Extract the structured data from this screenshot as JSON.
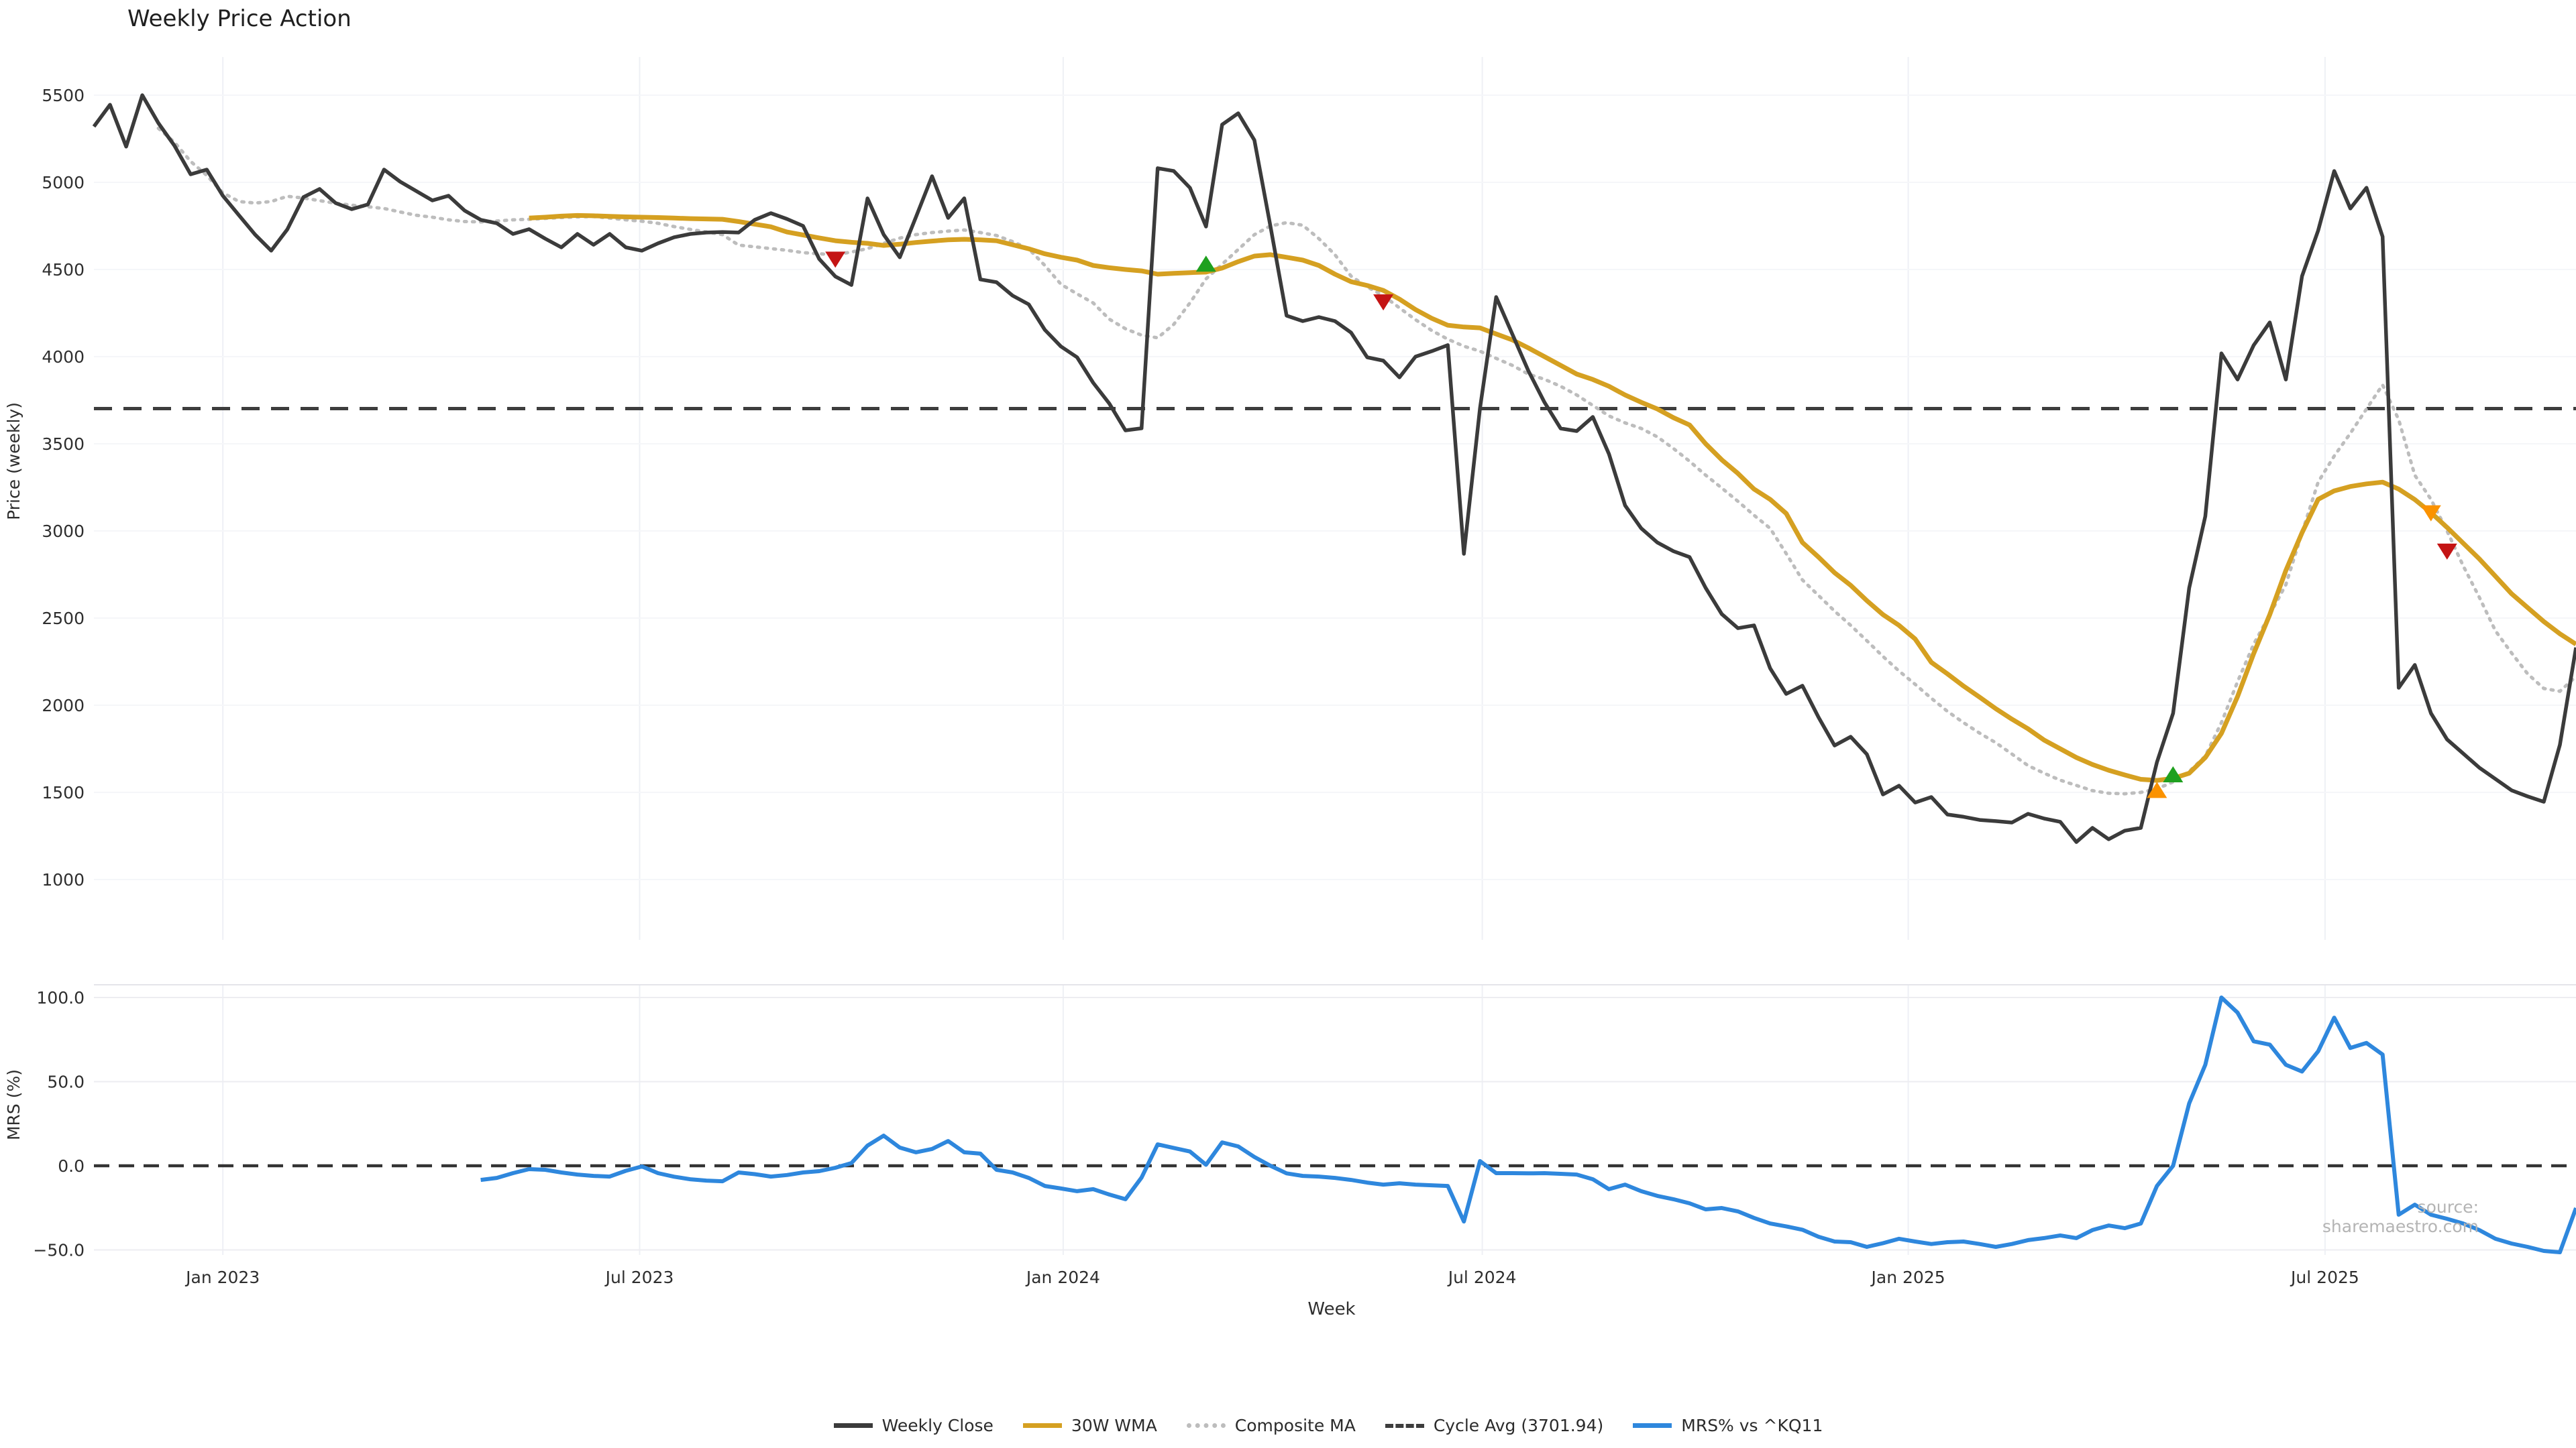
{
  "title": "Weekly Price Action",
  "source_note": "source: sharemaestro.com",
  "legend": {
    "items": [
      {
        "label": "Weekly Close",
        "swatch": "solid-dark"
      },
      {
        "label": "30W WMA",
        "swatch": "solid-gold"
      },
      {
        "label": "Composite MA",
        "swatch": "dotted-gray"
      },
      {
        "label": "Cycle Avg (3701.94)",
        "swatch": "dashed-dark"
      },
      {
        "label": "MRS% vs ^KQ11",
        "swatch": "solid-blue"
      }
    ]
  },
  "chart_data": [
    {
      "type": "line",
      "panel": "price",
      "title": "Weekly Price Action",
      "ylabel": "Price (weekly)",
      "ylim": [
        655,
        5720
      ],
      "grid": "faint",
      "yticks": {
        "values": [
          5500,
          5000,
          4500,
          4000,
          3500,
          3000,
          2500,
          2000,
          1500,
          1000
        ],
        "labels": [
          "5500",
          "5000",
          "4500",
          "4000",
          "3500",
          "3000",
          "2500",
          "2000",
          "1500",
          "1000"
        ]
      },
      "xticks": {
        "weeks": [
          8,
          33.86,
          60.14,
          86.14,
          112.57,
          138.43
        ],
        "labels": [
          "Jan 2023",
          "Jul 2023",
          "Jan 2024",
          "Jul 2024",
          "Jan 2025",
          "Jul 2025"
        ]
      },
      "x_start": "week 0 = first week shown (approx Nov 2022)",
      "n_weeks": 155,
      "cycle_avg": 3701.94,
      "series": [
        {
          "name": "Weekly Close",
          "color": "#3b3b3b",
          "style": "solid",
          "start_week": 0,
          "values": [
            5320,
            5445,
            5205,
            5500,
            5340,
            5210,
            5046,
            5073,
            4923,
            4811,
            4700,
            4608,
            4730,
            4915,
            4962,
            4881,
            4846,
            4873,
            5073,
            5004,
            4950,
            4896,
            4923,
            4838,
            4785,
            4765,
            4704,
            4731,
            4677,
            4627,
            4704,
            4642,
            4704,
            4627,
            4608,
            4650,
            4685,
            4704,
            4712,
            4715,
            4712,
            4785,
            4823,
            4790,
            4750,
            4560,
            4460,
            4411,
            4908,
            4700,
            4570,
            4800,
            5035,
            4796,
            4908,
            4443,
            4427,
            4350,
            4300,
            4154,
            4058,
            3996,
            3850,
            3731,
            3577,
            3589,
            5081,
            5065,
            4969,
            4746,
            5331,
            5396,
            5242,
            4746,
            4235,
            4204,
            4227,
            4204,
            4138,
            3996,
            3977,
            3881,
            4000,
            4031,
            4066,
            2869,
            3704,
            4342,
            4130,
            3919,
            3738,
            3588,
            3573,
            3654,
            3442,
            3146,
            3015,
            2934,
            2884,
            2850,
            2673,
            2523,
            2442,
            2458,
            2212,
            2065,
            2112,
            1931,
            1769,
            1819,
            1719,
            1488,
            1538,
            1442,
            1473,
            1373,
            1360,
            1342,
            1335,
            1327,
            1377,
            1350,
            1331,
            1215,
            1296,
            1231,
            1280,
            1296,
            1673,
            1954,
            2673,
            3084,
            4019,
            3869,
            4065,
            4196,
            3869,
            4462,
            4723,
            5065,
            4850,
            4969,
            4688,
            2100,
            2231,
            1954,
            1804,
            1723,
            1642,
            1577,
            1512,
            1477,
            1446,
            1773,
            2331
          ]
        },
        {
          "name": "30W WMA",
          "color": "#d5a021",
          "style": "solid",
          "start_week": 27,
          "values": [
            4795,
            4800,
            4806,
            4810,
            4808,
            4805,
            4802,
            4800,
            4798,
            4795,
            4792,
            4790,
            4788,
            4775,
            4760,
            4745,
            4715,
            4698,
            4681,
            4665,
            4656,
            4650,
            4638,
            4645,
            4655,
            4663,
            4670,
            4673,
            4670,
            4665,
            4642,
            4619,
            4590,
            4570,
            4554,
            4523,
            4510,
            4500,
            4492,
            4473,
            4478,
            4482,
            4485,
            4508,
            4545,
            4577,
            4585,
            4570,
            4554,
            4523,
            4473,
            4430,
            4408,
            4380,
            4330,
            4270,
            4220,
            4180,
            4170,
            4165,
            4130,
            4096,
            4050,
            4000,
            3950,
            3900,
            3869,
            3830,
            3780,
            3738,
            3700,
            3650,
            3608,
            3500,
            3408,
            3330,
            3240,
            3181,
            3100,
            2934,
            2850,
            2760,
            2688,
            2600,
            2520,
            2458,
            2380,
            2246,
            2180,
            2110,
            2046,
            1980,
            1920,
            1865,
            1800,
            1750,
            1700,
            1660,
            1627,
            1600,
            1575,
            1569,
            1580,
            1610,
            1700,
            1838,
            2050,
            2296,
            2520,
            2773,
            2990,
            3181,
            3230,
            3255,
            3270,
            3280,
            3240,
            3180,
            3105,
            3020,
            2930,
            2840,
            2740,
            2640,
            2560,
            2480,
            2410,
            2350
          ]
        },
        {
          "name": "Composite MA",
          "color": "#bdbdbd",
          "style": "dotted",
          "start_week": 4,
          "values": [
            5310,
            5230,
            5120,
            5040,
            4940,
            4890,
            4881,
            4890,
            4920,
            4910,
            4895,
            4880,
            4869,
            4860,
            4850,
            4830,
            4811,
            4800,
            4785,
            4775,
            4773,
            4778,
            4785,
            4788,
            4793,
            4798,
            4802,
            4804,
            4795,
            4785,
            4777,
            4765,
            4746,
            4730,
            4715,
            4700,
            4640,
            4630,
            4620,
            4610,
            4597,
            4590,
            4585,
            4600,
            4620,
            4650,
            4680,
            4700,
            4712,
            4720,
            4727,
            4712,
            4695,
            4660,
            4619,
            4523,
            4415,
            4360,
            4308,
            4215,
            4160,
            4123,
            4108,
            4185,
            4308,
            4446,
            4530,
            4615,
            4700,
            4750,
            4769,
            4754,
            4677,
            4585,
            4462,
            4400,
            4350,
            4280,
            4212,
            4150,
            4100,
            4060,
            4031,
            3990,
            3950,
            3900,
            3870,
            3830,
            3780,
            3720,
            3660,
            3620,
            3588,
            3540,
            3473,
            3400,
            3320,
            3246,
            3170,
            3090,
            3015,
            2870,
            2719,
            2630,
            2540,
            2458,
            2370,
            2280,
            2196,
            2120,
            2040,
            1965,
            1900,
            1840,
            1785,
            1720,
            1654,
            1610,
            1570,
            1540,
            1510,
            1495,
            1492,
            1500,
            1520,
            1560,
            1620,
            1708,
            1900,
            2135,
            2350,
            2520,
            2692,
            2990,
            3280,
            3430,
            3560,
            3700,
            3838,
            3638,
            3320,
            3181,
            3000,
            2800,
            2620,
            2427,
            2300,
            2180,
            2096,
            2080,
            2165
          ]
        },
        {
          "name": "Cycle Avg",
          "color": "#3d3d3d",
          "style": "dashed",
          "value": 3701.94
        }
      ],
      "signals": [
        {
          "dir": "down",
          "color": "#c41414",
          "week": 46,
          "price": 4560
        },
        {
          "dir": "up",
          "color": "#1fa01f",
          "week": 69,
          "price": 4530
        },
        {
          "dir": "down",
          "color": "#c41414",
          "week": 80,
          "price": 4315
        },
        {
          "dir": "up",
          "color": "#fb9200",
          "week": 128,
          "price": 1510
        },
        {
          "dir": "up",
          "color": "#1fa01f",
          "week": 129,
          "price": 1600
        },
        {
          "dir": "down",
          "color": "#fb9200",
          "week": 145,
          "price": 3105
        },
        {
          "dir": "down",
          "color": "#c41414",
          "week": 146,
          "price": 2885
        }
      ]
    },
    {
      "type": "line",
      "panel": "mrs",
      "ylabel": "MRS (%)",
      "xlabel": "Week",
      "ylim": [
        -53,
        107.5
      ],
      "zero_line_dashed": true,
      "yticks": {
        "values": [
          100,
          50,
          0,
          -50
        ],
        "labels": [
          "100.0",
          "50.0",
          "0.0",
          "−50.0"
        ]
      },
      "series": [
        {
          "name": "MRS% vs ^KQ11",
          "color": "#2e87dd",
          "style": "solid",
          "start_week": 24,
          "values": [
            -8.4,
            -7.2,
            -4.4,
            -2.0,
            -2.4,
            -4.0,
            -5.2,
            -6.0,
            -6.4,
            -3.0,
            -0.4,
            -4.4,
            -6.5,
            -8.0,
            -8.8,
            -9.2,
            -4.0,
            -5.0,
            -6.4,
            -5.5,
            -4.0,
            -3.2,
            -1.2,
            1.6,
            12.0,
            17.9,
            10.8,
            8.0,
            10.0,
            14.7,
            8.0,
            7.2,
            -2.4,
            -4.0,
            -7.2,
            -12.0,
            -13.5,
            -15.1,
            -13.9,
            -17.1,
            -19.9,
            -7.0,
            12.7,
            10.6,
            8.5,
            0.6,
            13.9,
            11.5,
            5.2,
            0.0,
            -4.5,
            -6.0,
            -6.4,
            -7.2,
            -8.4,
            -10.0,
            -11.2,
            -10.4,
            -11.2,
            -11.6,
            -12.0,
            -33.1,
            2.8,
            -4.4,
            -4.4,
            -4.5,
            -4.4,
            -4.8,
            -5.2,
            -8.0,
            -13.9,
            -11.2,
            -15.1,
            -17.9,
            -19.9,
            -22.3,
            -25.9,
            -25.1,
            -27.1,
            -31.0,
            -34.3,
            -36.0,
            -38.0,
            -42.2,
            -45.0,
            -45.4,
            -48.2,
            -46.0,
            -43.4,
            -45.0,
            -46.5,
            -45.4,
            -45.0,
            -46.5,
            -48.2,
            -46.5,
            -44.2,
            -43.0,
            -41.4,
            -43.0,
            -38.2,
            -35.5,
            -37.1,
            -34.3,
            -12.0,
            0.0,
            37.1,
            60.0,
            100.0,
            91.0,
            74.0,
            72.0,
            60.0,
            56.0,
            68.0,
            88.0,
            70.0,
            73.0,
            66.1,
            -29.1,
            -23.1,
            -29.1,
            -31.5,
            -34.3,
            -38.2,
            -43.4,
            -46.2,
            -48.2,
            -50.6,
            -51.4,
            -25.1
          ]
        }
      ]
    }
  ]
}
